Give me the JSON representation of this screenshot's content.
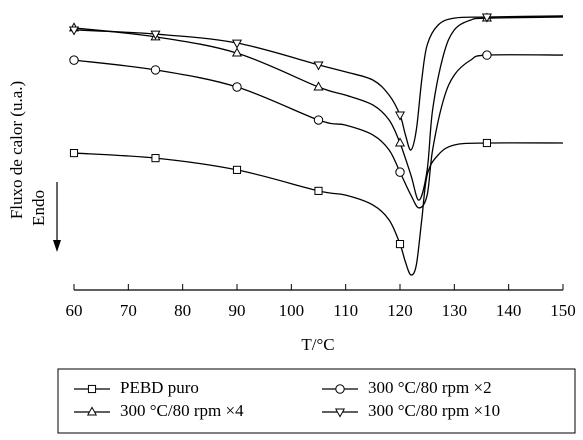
{
  "chart_data": {
    "type": "line",
    "y_label": "Fluxo de calor (u.a.)",
    "direction_label": "Endo",
    "x_label": "T/°C",
    "xlim": [
      60,
      150
    ],
    "xticks": [
      60,
      70,
      80,
      90,
      100,
      110,
      120,
      130,
      140,
      150
    ],
    "ylim": [
      0,
      100
    ],
    "markers_at": [
      60,
      75,
      90,
      105,
      120,
      136
    ],
    "color": "#000000",
    "series": [
      {
        "name": "PEBD puro",
        "marker": "square",
        "x": [
          60,
          75,
          90,
          105,
          110,
          115,
          118,
          120,
          121,
          122,
          123,
          124,
          125,
          127,
          130,
          136,
          150
        ],
        "values": [
          48.9,
          47.1,
          42.9,
          35.4,
          33.9,
          30.4,
          25,
          16.4,
          10,
          5.4,
          8.9,
          25,
          41.1,
          48.2,
          51.8,
          52.5,
          52.5
        ]
      },
      {
        "name": "300 °C/80 rpm ×2",
        "marker": "circle",
        "x": [
          60,
          75,
          90,
          105,
          110,
          115,
          118,
          120,
          122,
          123.5,
          125,
          126,
          128,
          130,
          133,
          136,
          150
        ],
        "values": [
          82.1,
          78.6,
          72.5,
          60.7,
          58.9,
          55.4,
          50,
          42.1,
          33.9,
          29.3,
          33.9,
          50,
          67.9,
          76.8,
          82.1,
          83.9,
          83.9
        ]
      },
      {
        "name": "300 °C/80 rpm ×4",
        "marker": "triangle-up",
        "x": [
          60,
          75,
          90,
          105,
          110,
          115,
          118,
          120,
          122,
          123.5,
          125,
          126,
          128,
          130,
          133,
          136,
          150
        ],
        "values": [
          93.6,
          90.4,
          84.6,
          72.5,
          69.6,
          66.1,
          60.7,
          52.5,
          41.1,
          32.1,
          42.9,
          64.3,
          83.9,
          92.9,
          96.4,
          97.1,
          97.5
        ]
      },
      {
        "name": "300 °C/80 rpm ×10",
        "marker": "triangle-down",
        "x": [
          60,
          75,
          90,
          105,
          110,
          115,
          118,
          120,
          121,
          122,
          123,
          124,
          125,
          127,
          130,
          136,
          150
        ],
        "values": [
          92.9,
          91.4,
          88.2,
          80.4,
          77.9,
          75,
          69.6,
          62.5,
          55.4,
          50,
          57.1,
          75,
          87.5,
          94.6,
          97.1,
          97.5,
          97.9
        ]
      }
    ]
  }
}
